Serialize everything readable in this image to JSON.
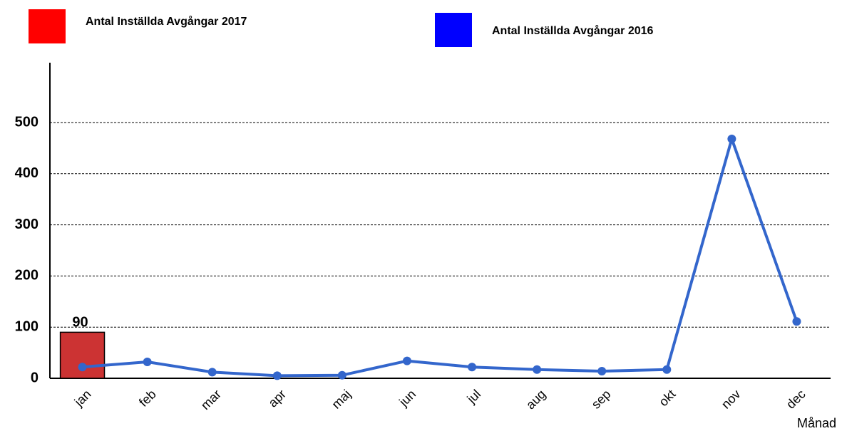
{
  "chart_data": {
    "type": "bar",
    "x_label": "Månad",
    "categories": [
      "jan",
      "feb",
      "mar",
      "apr",
      "maj",
      "jun",
      "jul",
      "aug",
      "sep",
      "okt",
      "nov",
      "dec"
    ],
    "series": [
      {
        "name": "Antal Inställda Avgångar 2017",
        "type": "bar",
        "color": "#cc3333",
        "legend_color": "#ff0000",
        "values": [
          90,
          null,
          null,
          null,
          null,
          null,
          null,
          null,
          null,
          null,
          null,
          null
        ]
      },
      {
        "name": "Antal Inställda Avgångar 2016",
        "type": "line",
        "color": "#3366cc",
        "legend_color": "#0000ff",
        "values": [
          22,
          32,
          12,
          5,
          6,
          34,
          22,
          17,
          14,
          17,
          468,
          111
        ]
      }
    ],
    "ylim": [
      0,
      617
    ],
    "yticks": [
      0,
      100,
      200,
      300,
      400,
      500
    ],
    "grid": true
  }
}
